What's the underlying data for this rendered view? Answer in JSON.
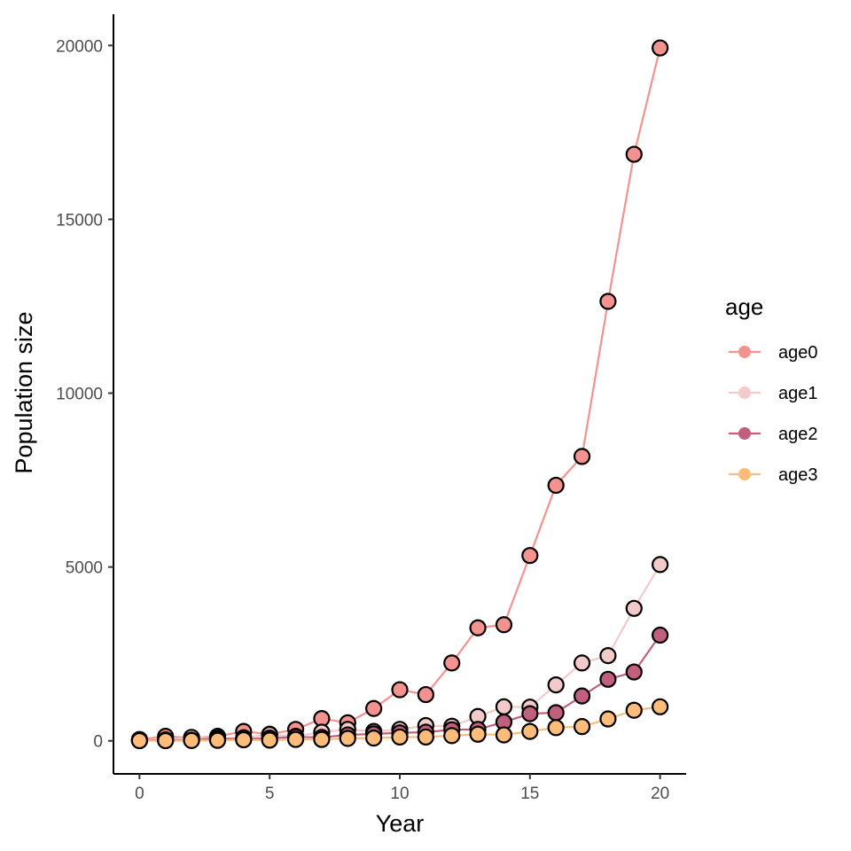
{
  "chart_data": {
    "type": "line",
    "title": "",
    "xlabel": "Year",
    "ylabel": "Population size",
    "xlim": [
      -1,
      21
    ],
    "ylim": [
      -950,
      20900
    ],
    "x_ticks": [
      0,
      5,
      10,
      15,
      20
    ],
    "y_ticks": [
      0,
      5000,
      10000,
      15000,
      20000
    ],
    "grid": false,
    "legend": {
      "title": "age",
      "placement": "right"
    },
    "x": [
      0,
      1,
      2,
      3,
      4,
      5,
      6,
      7,
      8,
      9,
      10,
      11,
      12,
      13,
      14,
      15,
      16,
      17,
      18,
      19,
      20
    ],
    "series": [
      {
        "name": "age0",
        "color": "#F4928F",
        "values": [
          40,
          130,
          80,
          130,
          270,
          190,
          330,
          640,
          520,
          930,
          1470,
          1330,
          2240,
          3250,
          3340,
          5330,
          7350,
          8180,
          12640,
          16870,
          19930
        ]
      },
      {
        "name": "age1",
        "color": "#F3CACA",
        "values": [
          20,
          30,
          100,
          60,
          90,
          180,
          130,
          250,
          330,
          270,
          330,
          440,
          420,
          700,
          980,
          970,
          1610,
          2240,
          2450,
          3810,
          5070
        ]
      },
      {
        "name": "age2",
        "color": "#C0607C",
        "values": [
          10,
          20,
          20,
          70,
          50,
          80,
          110,
          100,
          170,
          200,
          230,
          250,
          320,
          330,
          540,
          780,
          810,
          1290,
          1770,
          1980,
          3040
        ]
      },
      {
        "name": "age3",
        "color": "#FDBC79",
        "values": [
          5,
          5,
          10,
          15,
          30,
          20,
          40,
          40,
          70,
          80,
          110,
          110,
          150,
          190,
          170,
          270,
          380,
          410,
          630,
          880,
          980
        ]
      }
    ]
  }
}
